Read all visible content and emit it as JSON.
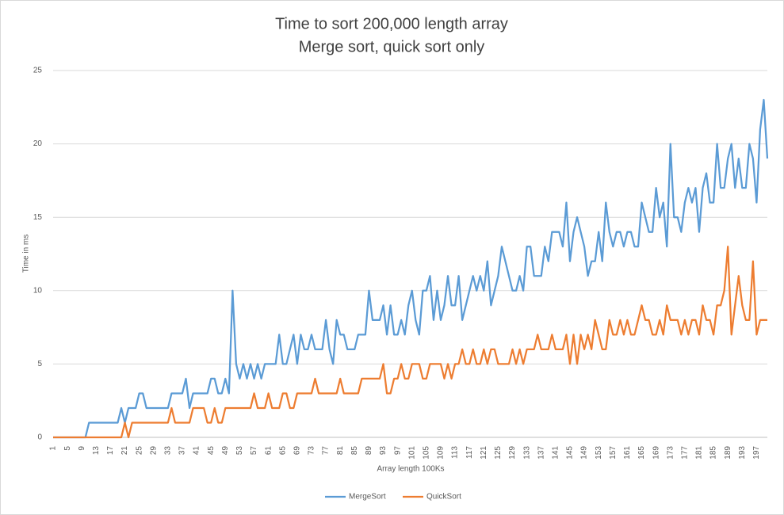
{
  "chart_data": {
    "type": "line",
    "title": "Time to sort 200,000 length array",
    "subtitle": "Merge sort, quick sort only",
    "x_label": "Array length 100Ks",
    "y_label": "Time in ms",
    "categories": [
      1,
      null,
      null,
      null,
      5,
      null,
      null,
      null,
      9,
      null,
      null,
      null,
      13,
      null,
      null,
      null,
      17,
      null,
      null,
      null,
      21,
      null,
      null,
      null,
      25,
      null,
      null,
      null,
      29,
      null,
      null,
      null,
      33,
      null,
      null,
      null,
      37,
      null,
      null,
      null,
      41,
      null,
      null,
      null,
      45,
      null,
      null,
      null,
      49,
      null,
      null,
      null,
      53,
      null,
      null,
      null,
      57,
      null,
      null,
      null,
      61,
      null,
      null,
      null,
      65,
      null,
      null,
      null,
      69,
      null,
      null,
      null,
      73,
      null,
      null,
      null,
      77,
      null,
      null,
      null,
      81,
      null,
      null,
      null,
      85,
      null,
      null,
      null,
      89,
      null,
      null,
      null,
      93,
      null,
      null,
      null,
      97,
      null,
      null,
      null,
      101,
      null,
      null,
      null,
      105,
      null,
      null,
      null,
      109,
      null,
      null,
      null,
      113,
      null,
      null,
      null,
      117,
      null,
      null,
      null,
      121,
      null,
      null,
      null,
      125,
      null,
      null,
      null,
      129,
      null,
      null,
      null,
      133,
      null,
      null,
      null,
      137,
      null,
      null,
      null,
      141,
      null,
      null,
      null,
      145,
      null,
      null,
      null,
      149,
      null,
      null,
      null,
      153,
      null,
      null,
      null,
      157,
      null,
      null,
      null,
      161,
      null,
      null,
      null,
      165,
      null,
      null,
      null,
      169,
      null,
      null,
      null,
      173,
      null,
      null,
      null,
      177,
      null,
      null,
      null,
      181,
      null,
      null,
      null,
      185,
      null,
      null,
      null,
      189,
      null,
      null,
      null,
      193,
      null,
      null,
      null,
      197,
      null,
      null,
      null
    ],
    "series": [
      {
        "name": "MergeSort",
        "color": "#5b9bd5",
        "values": [
          0,
          0,
          0,
          0,
          0,
          0,
          0,
          0,
          0,
          0,
          1,
          1,
          1,
          1,
          1,
          1,
          1,
          1,
          1,
          2,
          1,
          2,
          2,
          2,
          3,
          3,
          2,
          2,
          2,
          2,
          2,
          2,
          2,
          3,
          3,
          3,
          3,
          4,
          2,
          3,
          3,
          3,
          3,
          3,
          4,
          4,
          3,
          3,
          4,
          3,
          10,
          5,
          4,
          5,
          4,
          5,
          4,
          5,
          4,
          5,
          5,
          5,
          5,
          7,
          5,
          5,
          6,
          7,
          5,
          7,
          6,
          6,
          7,
          6,
          6,
          6,
          8,
          6,
          5,
          8,
          7,
          7,
          6,
          6,
          6,
          7,
          7,
          7,
          10,
          8,
          8,
          8,
          9,
          7,
          9,
          7,
          7,
          8,
          7,
          9,
          10,
          8,
          7,
          10,
          10,
          11,
          8,
          10,
          8,
          9,
          11,
          9,
          9,
          11,
          8,
          9,
          10,
          11,
          10,
          11,
          10,
          12,
          9,
          10,
          11,
          13,
          12,
          11,
          10,
          10,
          11,
          10,
          13,
          13,
          11,
          11,
          11,
          13,
          12,
          14,
          14,
          14,
          13,
          16,
          12,
          14,
          15,
          14,
          13,
          11,
          12,
          12,
          14,
          12,
          16,
          14,
          13,
          14,
          14,
          13,
          14,
          14,
          13,
          13,
          16,
          15,
          14,
          14,
          17,
          15,
          16,
          13,
          20,
          15,
          15,
          14,
          16,
          17,
          16,
          17,
          14,
          17,
          18,
          16,
          16,
          20,
          17,
          17,
          19,
          20,
          17,
          19,
          17,
          17,
          20,
          19,
          16,
          21,
          23,
          19
        ]
      },
      {
        "name": "QuickSort",
        "color": "#ed7d31",
        "values": [
          0,
          0,
          0,
          0,
          0,
          0,
          0,
          0,
          0,
          0,
          0,
          0,
          0,
          0,
          0,
          0,
          0,
          0,
          0,
          0,
          1,
          0,
          1,
          1,
          1,
          1,
          1,
          1,
          1,
          1,
          1,
          1,
          1,
          2,
          1,
          1,
          1,
          1,
          1,
          2,
          2,
          2,
          2,
          1,
          1,
          2,
          1,
          1,
          2,
          2,
          2,
          2,
          2,
          2,
          2,
          2,
          3,
          2,
          2,
          2,
          3,
          2,
          2,
          2,
          3,
          3,
          2,
          2,
          3,
          3,
          3,
          3,
          3,
          4,
          3,
          3,
          3,
          3,
          3,
          3,
          4,
          3,
          3,
          3,
          3,
          3,
          4,
          4,
          4,
          4,
          4,
          4,
          5,
          3,
          3,
          4,
          4,
          5,
          4,
          4,
          5,
          5,
          5,
          4,
          4,
          5,
          5,
          5,
          5,
          4,
          5,
          4,
          5,
          5,
          6,
          5,
          5,
          6,
          5,
          5,
          6,
          5,
          6,
          6,
          5,
          5,
          5,
          5,
          6,
          5,
          6,
          5,
          6,
          6,
          6,
          7,
          6,
          6,
          6,
          7,
          6,
          6,
          6,
          7,
          5,
          7,
          5,
          7,
          6,
          7,
          6,
          8,
          7,
          6,
          6,
          8,
          7,
          7,
          8,
          7,
          8,
          7,
          7,
          8,
          9,
          8,
          8,
          7,
          7,
          8,
          7,
          9,
          8,
          8,
          8,
          7,
          8,
          7,
          8,
          8,
          7,
          9,
          8,
          8,
          7,
          9,
          9,
          10,
          13,
          7,
          9,
          11,
          9,
          8,
          8,
          12,
          7,
          8,
          8,
          8
        ]
      }
    ],
    "ylim": [
      0,
      25
    ],
    "yticks": [
      0,
      5,
      10,
      15,
      20,
      25
    ],
    "grid": true,
    "legend": "bottom"
  }
}
